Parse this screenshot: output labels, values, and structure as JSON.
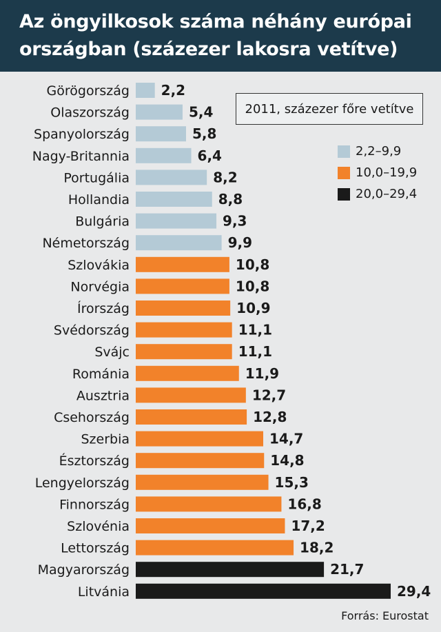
{
  "header": {
    "title_line1": "Az öngyilkosok száma néhány európai",
    "title_line2": "országban (százezer lakosra vetítve)"
  },
  "annotation": "2011, százezer főre vetítve",
  "legend": [
    {
      "label": "2,2–9,9",
      "color": "#b4cad6"
    },
    {
      "label": "10,0–19,9",
      "color": "#f2822a"
    },
    {
      "label": "20,0–29,4",
      "color": "#1a1a1a"
    }
  ],
  "source": "Forrás: Eurostat",
  "chart_data": {
    "type": "bar",
    "orientation": "horizontal",
    "categories": [
      "Görögország",
      "Olaszország",
      "Spanyolország",
      "Nagy-Britannia",
      "Portugália",
      "Hollandia",
      "Bulgária",
      "Németország",
      "Szlovákia",
      "Norvégia",
      "Írország",
      "Svédország",
      "Svájc",
      "Románia",
      "Ausztria",
      "Csehország",
      "Szerbia",
      "Észtország",
      "Lengyelország",
      "Finnország",
      "Szlovénia",
      "Lettország",
      "Magyarország",
      "Litvánia"
    ],
    "values": [
      2.2,
      5.4,
      5.8,
      6.4,
      8.2,
      8.8,
      9.3,
      9.9,
      10.8,
      10.8,
      10.9,
      11.1,
      11.1,
      11.9,
      12.7,
      12.8,
      14.7,
      14.8,
      15.3,
      16.8,
      17.2,
      18.2,
      21.7,
      29.4
    ],
    "value_labels": [
      "2,2",
      "5,4",
      "5,8",
      "6,4",
      "8,2",
      "8,8",
      "9,3",
      "9,9",
      "10,8",
      "10,8",
      "10,9",
      "11,1",
      "11,1",
      "11,9",
      "12,7",
      "12,8",
      "14,7",
      "14,8",
      "15,3",
      "16,8",
      "17,2",
      "18,2",
      "21,7",
      "29,4"
    ],
    "color_groups": [
      0,
      0,
      0,
      0,
      0,
      0,
      0,
      0,
      1,
      1,
      1,
      1,
      1,
      1,
      1,
      1,
      1,
      1,
      1,
      1,
      1,
      1,
      2,
      2
    ],
    "xlim": [
      0,
      29.4
    ],
    "grid": false,
    "legend_position": "right"
  }
}
